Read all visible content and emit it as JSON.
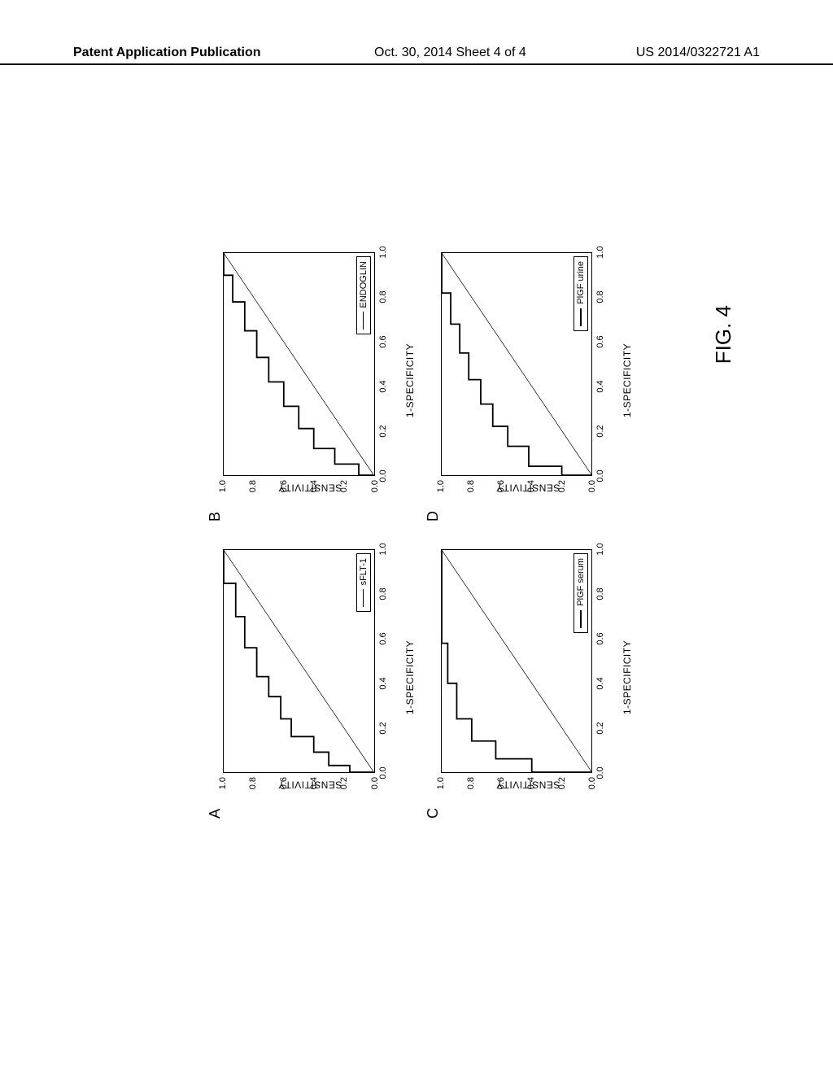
{
  "header": {
    "left": "Patent Application Publication",
    "center": "Oct. 30, 2014  Sheet 4 of 4",
    "right": "US 2014/0322721 A1"
  },
  "figure_label": "FIG. 4",
  "axis": {
    "x_title": "1-SPECIFICITY",
    "y_title": "SENSITIVITY",
    "ticks": [
      "0.0",
      "0.2",
      "0.4",
      "0.6",
      "0.8",
      "1.0"
    ]
  },
  "panels": [
    {
      "id": "A",
      "legend": "sFLT-1",
      "roc_points": [
        [
          0.0,
          0.0
        ],
        [
          0.0,
          0.16
        ],
        [
          0.03,
          0.16
        ],
        [
          0.03,
          0.3
        ],
        [
          0.09,
          0.3
        ],
        [
          0.09,
          0.4
        ],
        [
          0.16,
          0.4
        ],
        [
          0.16,
          0.55
        ],
        [
          0.24,
          0.55
        ],
        [
          0.24,
          0.62
        ],
        [
          0.34,
          0.62
        ],
        [
          0.34,
          0.7
        ],
        [
          0.43,
          0.7
        ],
        [
          0.43,
          0.78
        ],
        [
          0.56,
          0.78
        ],
        [
          0.56,
          0.86
        ],
        [
          0.7,
          0.86
        ],
        [
          0.7,
          0.92
        ],
        [
          0.85,
          0.92
        ],
        [
          0.85,
          1.0
        ],
        [
          1.0,
          1.0
        ]
      ]
    },
    {
      "id": "B",
      "legend": "ENDOGLIN",
      "roc_points": [
        [
          0.0,
          0.0
        ],
        [
          0.0,
          0.1
        ],
        [
          0.05,
          0.1
        ],
        [
          0.05,
          0.26
        ],
        [
          0.12,
          0.26
        ],
        [
          0.12,
          0.4
        ],
        [
          0.21,
          0.4
        ],
        [
          0.21,
          0.5
        ],
        [
          0.31,
          0.5
        ],
        [
          0.31,
          0.6
        ],
        [
          0.42,
          0.6
        ],
        [
          0.42,
          0.7
        ],
        [
          0.53,
          0.7
        ],
        [
          0.53,
          0.78
        ],
        [
          0.65,
          0.78
        ],
        [
          0.65,
          0.86
        ],
        [
          0.78,
          0.86
        ],
        [
          0.78,
          0.94
        ],
        [
          0.9,
          0.94
        ],
        [
          0.9,
          1.0
        ],
        [
          1.0,
          1.0
        ]
      ]
    },
    {
      "id": "C",
      "legend": "PlGF serum",
      "roc_points": [
        [
          0.0,
          0.0
        ],
        [
          0.0,
          0.4
        ],
        [
          0.06,
          0.4
        ],
        [
          0.06,
          0.64
        ],
        [
          0.14,
          0.64
        ],
        [
          0.14,
          0.8
        ],
        [
          0.24,
          0.8
        ],
        [
          0.24,
          0.9
        ],
        [
          0.4,
          0.9
        ],
        [
          0.4,
          0.96
        ],
        [
          0.58,
          0.96
        ],
        [
          0.58,
          1.0
        ],
        [
          1.0,
          1.0
        ]
      ]
    },
    {
      "id": "D",
      "legend": "PlGF urine",
      "roc_points": [
        [
          0.0,
          0.0
        ],
        [
          0.0,
          0.2
        ],
        [
          0.04,
          0.2
        ],
        [
          0.04,
          0.42
        ],
        [
          0.13,
          0.42
        ],
        [
          0.13,
          0.56
        ],
        [
          0.22,
          0.56
        ],
        [
          0.22,
          0.66
        ],
        [
          0.32,
          0.66
        ],
        [
          0.32,
          0.74
        ],
        [
          0.43,
          0.74
        ],
        [
          0.43,
          0.82
        ],
        [
          0.55,
          0.82
        ],
        [
          0.55,
          0.88
        ],
        [
          0.68,
          0.88
        ],
        [
          0.68,
          0.94
        ],
        [
          0.82,
          0.94
        ],
        [
          0.82,
          1.0
        ],
        [
          1.0,
          1.0
        ]
      ]
    }
  ],
  "styling": {
    "background_color": "#ffffff",
    "line_color": "#000000",
    "line_width": 1.8,
    "font_family": "Arial",
    "axis_fontsize": 12,
    "tick_fontsize": 11,
    "panel_label_fontsize": 18,
    "xlim": [
      0.0,
      1.0
    ],
    "ylim": [
      0.0,
      1.0
    ],
    "tick_step": 0.2
  }
}
